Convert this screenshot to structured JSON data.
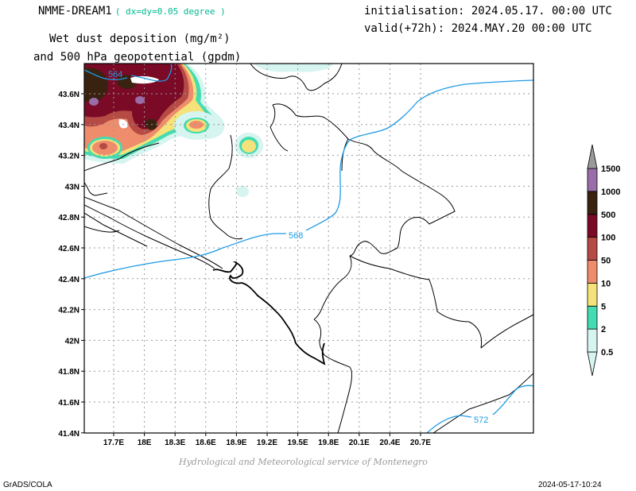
{
  "header": {
    "model": "NMME-DREAM1",
    "resolution": "( dx=dy=0.05 degree )",
    "initialisation": "initialisation: 2024.05.17. 00:00 UTC",
    "valid": "valid(+72h): 2024.MAY.20 00:00 UTC",
    "title_line1": "Wet dust deposition (mg/m²)",
    "title_line2": "and 500 hPa geopotential (gpdm)"
  },
  "map": {
    "lon_ticks": [
      "17.7E",
      "18E",
      "18.3E",
      "18.6E",
      "18.9E",
      "19.2E",
      "19.5E",
      "19.8E",
      "20.1E",
      "20.4E",
      "20.7E"
    ],
    "lat_ticks": [
      "43.6N",
      "43.4N",
      "43.2N",
      "43N",
      "42.8N",
      "42.6N",
      "42.4N",
      "42.2N",
      "42N",
      "41.8N",
      "41.6N",
      "41.4N"
    ],
    "contour_labels": [
      "564",
      "568",
      "572"
    ],
    "contour_color": "#1e9be6"
  },
  "legend": {
    "levels": [
      "0.5",
      "2",
      "5",
      "10",
      "50",
      "100",
      "500",
      "1000",
      "1500"
    ],
    "colors": [
      "#d6f4f0",
      "#44dcb0",
      "#f6e27a",
      "#ee8c6c",
      "#b64a44",
      "#7a0a26",
      "#3a2210",
      "#9a6ca8",
      "#9a9a9a"
    ]
  },
  "footer": {
    "credit": "Hydrological and Meteorological service of Montenegro",
    "software": "GrADS/COLA",
    "timestamp": "2024-05-17-10:24"
  }
}
